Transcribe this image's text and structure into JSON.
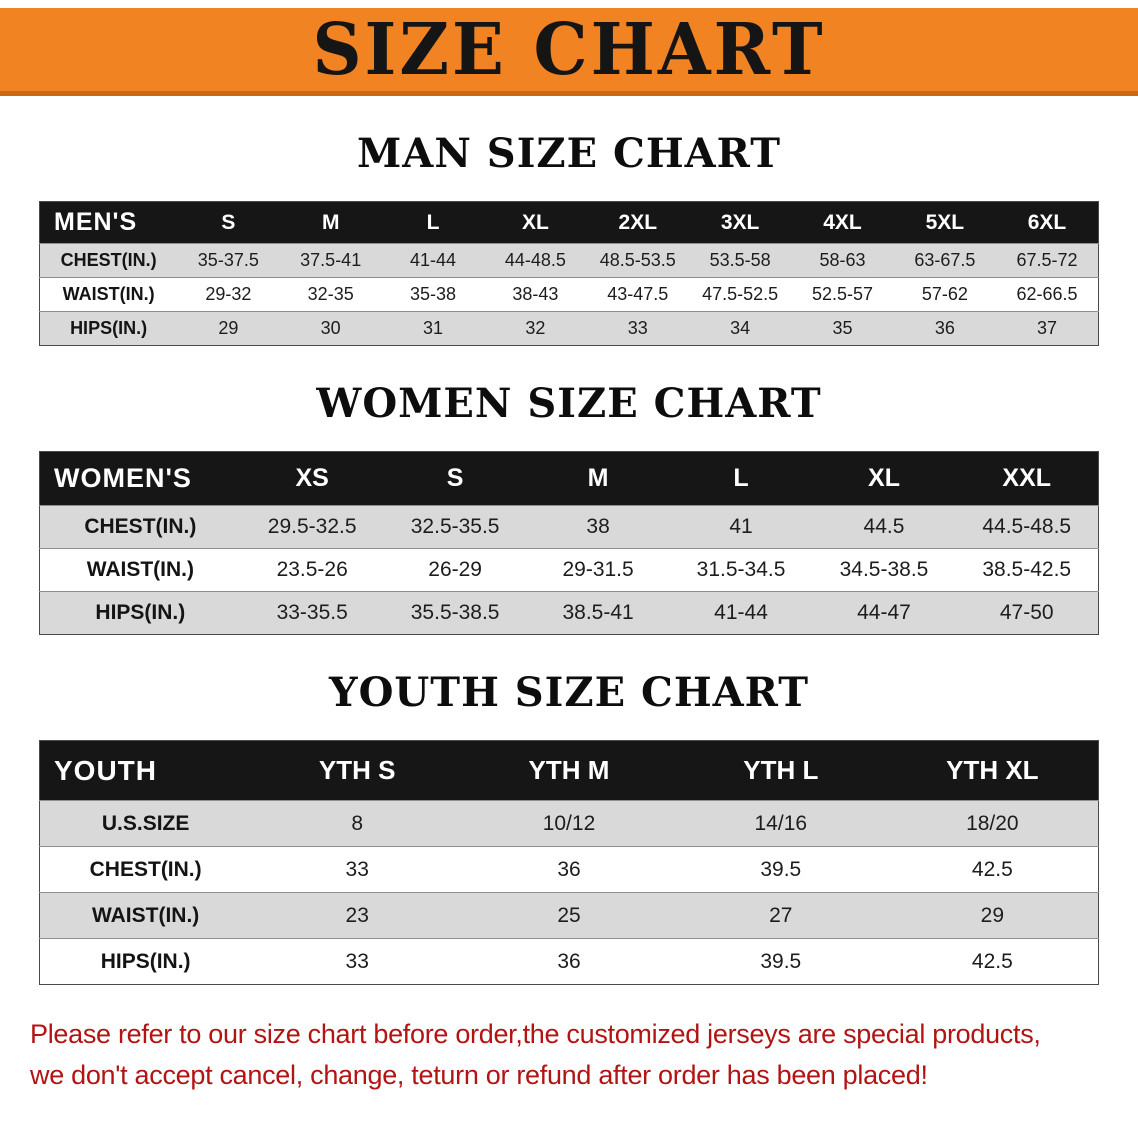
{
  "banner": {
    "title": "SIZE CHART",
    "bg_color": "#f28322",
    "text_color": "#151515"
  },
  "sections": [
    {
      "id": "men",
      "heading": "MAN SIZE CHART",
      "table": {
        "header": [
          "MEN'S",
          "S",
          "M",
          "L",
          "XL",
          "2XL",
          "3XL",
          "4XL",
          "5XL",
          "6XL"
        ],
        "rows": [
          [
            "CHEST(IN.)",
            "35-37.5",
            "37.5-41",
            "41-44",
            "44-48.5",
            "48.5-53.5",
            "53.5-58",
            "58-63",
            "63-67.5",
            "67.5-72"
          ],
          [
            "WAIST(IN.)",
            "29-32",
            "32-35",
            "35-38",
            "38-43",
            "43-47.5",
            "47.5-52.5",
            "52.5-57",
            "57-62",
            "62-66.5"
          ],
          [
            "HIPS(IN.)",
            "29",
            "30",
            "31",
            "32",
            "33",
            "34",
            "35",
            "36",
            "37"
          ]
        ]
      }
    },
    {
      "id": "women",
      "heading": "WOMEN SIZE CHART",
      "table": {
        "header": [
          "WOMEN'S",
          "XS",
          "S",
          "M",
          "L",
          "XL",
          "XXL"
        ],
        "rows": [
          [
            "CHEST(IN.)",
            "29.5-32.5",
            "32.5-35.5",
            "38",
            "41",
            "44.5",
            "44.5-48.5"
          ],
          [
            "WAIST(IN.)",
            "23.5-26",
            "26-29",
            "29-31.5",
            "31.5-34.5",
            "34.5-38.5",
            "38.5-42.5"
          ],
          [
            "HIPS(IN.)",
            "33-35.5",
            "35.5-38.5",
            "38.5-41",
            "41-44",
            "44-47",
            "47-50"
          ]
        ]
      }
    },
    {
      "id": "youth",
      "heading": "YOUTH SIZE CHART",
      "table": {
        "header": [
          "YOUTH",
          "YTH S",
          "YTH M",
          "YTH L",
          "YTH XL"
        ],
        "rows": [
          [
            "U.S.SIZE",
            "8",
            "10/12",
            "14/16",
            "18/20"
          ],
          [
            "CHEST(IN.)",
            "33",
            "36",
            "39.5",
            "42.5"
          ],
          [
            "WAIST(IN.)",
            "23",
            "25",
            "27",
            "29"
          ],
          [
            "HIPS(IN.)",
            "33",
            "36",
            "39.5",
            "42.5"
          ]
        ]
      }
    }
  ],
  "footer": {
    "color": "#b21414",
    "lines": [
      "Please refer to our size chart before order,the customized jerseys are special products,",
      "we don't accept cancel, change, teturn or refund after order has been placed!"
    ]
  }
}
